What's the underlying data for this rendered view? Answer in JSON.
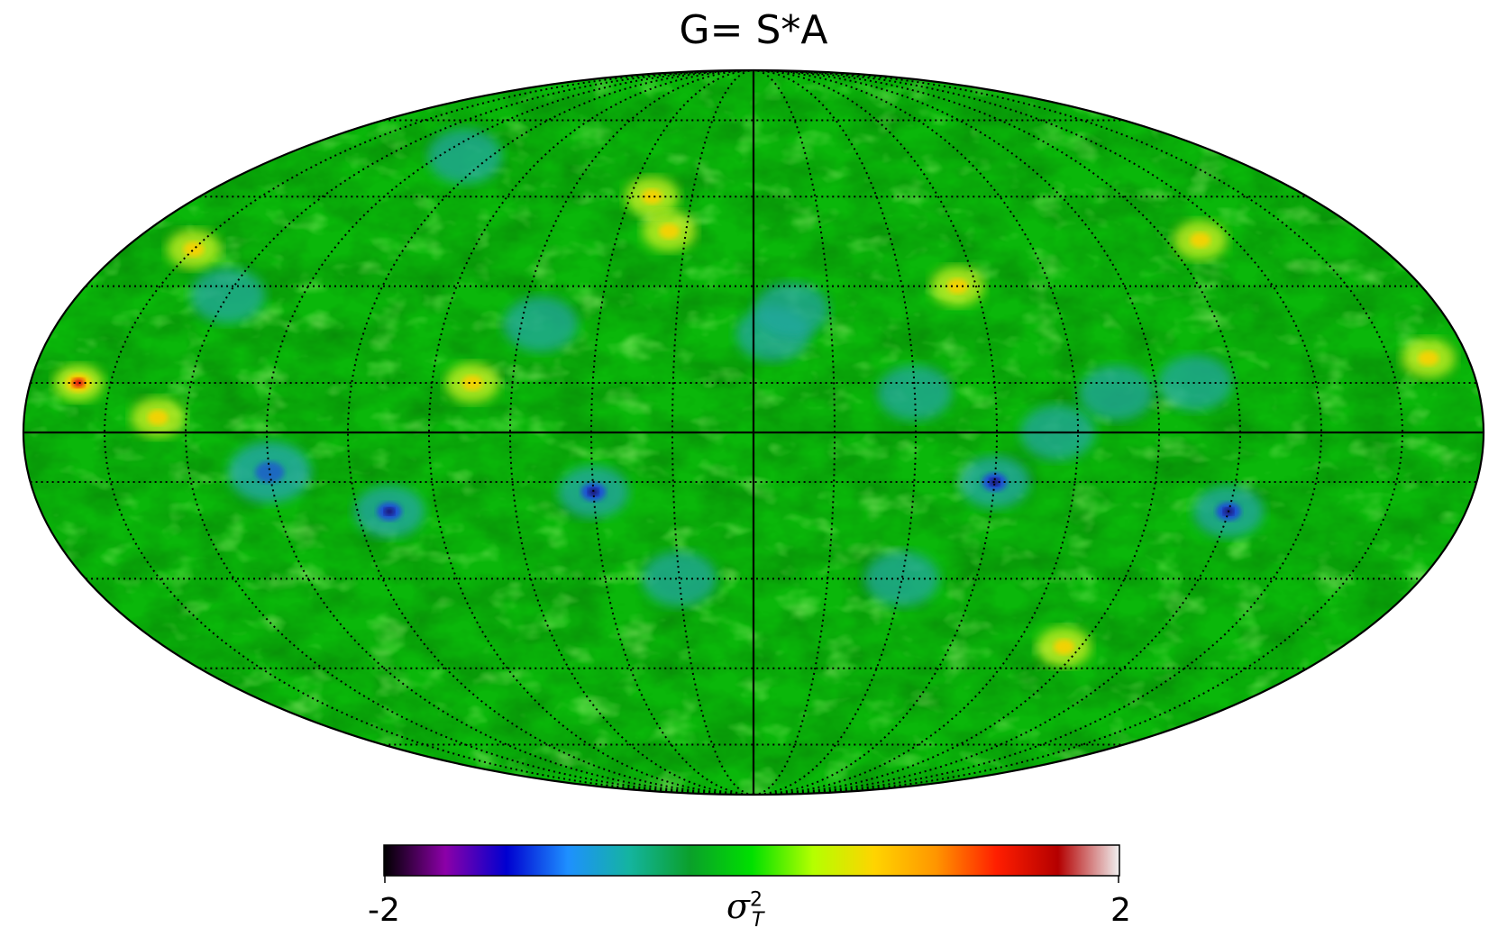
{
  "title": "G= S*A",
  "projection": "mollweide",
  "graticule": {
    "meridian_step_deg": 20,
    "parallel_step_deg": 20,
    "style": "dotted"
  },
  "colorbar": {
    "min_label": "-2",
    "max_label": "2",
    "unit_symbol": "σ",
    "unit_superscript": "2",
    "unit_subscript": "T",
    "stops": [
      "#000000",
      "#8c00a8",
      "#0000d0",
      "#1e90ff",
      "#14b4a0",
      "#0aa02a",
      "#00e000",
      "#b4ff00",
      "#ffd400",
      "#ff9600",
      "#ff1e00",
      "#b40000",
      "#f0f0f0"
    ]
  },
  "colors": {
    "background_field": "#0ab70a",
    "field_dark": "#069a14",
    "field_light": "#3fe03a",
    "cold_spot": "#23a7a0",
    "cold_core": "#1e50d8",
    "hot_spot": "#c8f020",
    "hot_core": "#ffd000"
  },
  "spots": [
    {
      "lon": 92,
      "lat": -16,
      "type": "cold_core"
    },
    {
      "lon": 40,
      "lat": -12,
      "type": "cold_core"
    },
    {
      "lon": 120,
      "lat": -8,
      "type": "cold_strong"
    },
    {
      "lon": 168,
      "lat": 10,
      "type": "hot_strong"
    },
    {
      "lon": 160,
      "lat": 38,
      "type": "hot"
    },
    {
      "lon": 147,
      "lat": 3,
      "type": "hot"
    },
    {
      "lon": 140,
      "lat": 28,
      "type": "cold"
    },
    {
      "lon": 55,
      "lat": 22,
      "type": "cold"
    },
    {
      "lon": 33,
      "lat": 50,
      "type": "hot"
    },
    {
      "lon": 25,
      "lat": 42,
      "type": "hot"
    },
    {
      "lon": -5,
      "lat": 20,
      "type": "cold"
    },
    {
      "lon": -10,
      "lat": 25,
      "type": "cold"
    },
    {
      "lon": -40,
      "lat": 8,
      "type": "cold"
    },
    {
      "lon": -55,
      "lat": 30,
      "type": "hot"
    },
    {
      "lon": -60,
      "lat": -10,
      "type": "cold_core"
    },
    {
      "lon": -75,
      "lat": 0,
      "type": "cold"
    },
    {
      "lon": -90,
      "lat": 8,
      "type": "cold"
    },
    {
      "lon": -110,
      "lat": 10,
      "type": "cold"
    },
    {
      "lon": -120,
      "lat": -16,
      "type": "cold_core"
    },
    {
      "lon": -130,
      "lat": 40,
      "type": "hot"
    },
    {
      "lon": -170,
      "lat": 15,
      "type": "hot"
    },
    {
      "lon": -95,
      "lat": -45,
      "type": "hot"
    },
    {
      "lon": 70,
      "lat": 10,
      "type": "hot"
    },
    {
      "lon": 110,
      "lat": 60,
      "type": "cold"
    },
    {
      "lon": 20,
      "lat": -30,
      "type": "cold"
    },
    {
      "lon": -40,
      "lat": -30,
      "type": "cold"
    }
  ]
}
